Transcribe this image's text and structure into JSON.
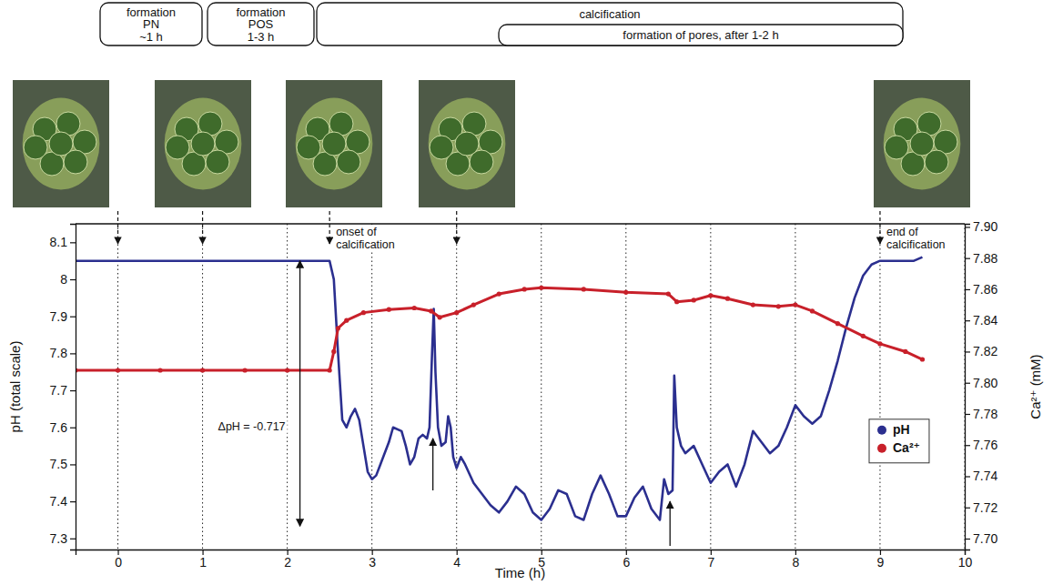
{
  "chart_data": {
    "type": "line",
    "x_label": "Time (h)",
    "y_label": "pH (total scale)",
    "y2_label": "Ca²⁺ (mM)",
    "xlim": [
      -0.5,
      10
    ],
    "xticks": [
      0,
      1,
      2,
      3,
      4,
      5,
      6,
      7,
      8,
      9,
      10
    ],
    "ylim": [
      7.27,
      8.15
    ],
    "yticks": [
      7.3,
      7.4,
      7.5,
      7.6,
      7.7,
      7.8,
      7.9,
      8.0,
      8.1
    ],
    "y2lim": [
      7.693,
      7.902
    ],
    "y2ticks": [
      {
        "value": 7.7,
        "label": "7.70"
      },
      7.72,
      7.74,
      7.76,
      7.78,
      {
        "value": 7.8,
        "label": "7.80"
      },
      7.82,
      7.84,
      7.86,
      7.88,
      {
        "value": 7.9,
        "label": "7.90"
      }
    ],
    "grid": "x",
    "legend": "right",
    "series": [
      {
        "name": "pH",
        "color": "#2b2f8f",
        "marker": "none",
        "line_style": "solid",
        "x": [
          -0.5,
          0,
          0.5,
          1,
          1.5,
          2,
          2.5,
          2.55,
          2.6,
          2.65,
          2.7,
          2.75,
          2.8,
          2.85,
          2.9,
          2.95,
          3.0,
          3.05,
          3.1,
          3.2,
          3.25,
          3.35,
          3.4,
          3.45,
          3.5,
          3.55,
          3.6,
          3.65,
          3.68,
          3.71,
          3.73,
          3.75,
          3.78,
          3.82,
          3.87,
          3.9,
          3.93,
          3.96,
          4.0,
          4.05,
          4.1,
          4.2,
          4.3,
          4.4,
          4.5,
          4.6,
          4.7,
          4.8,
          4.9,
          5.0,
          5.1,
          5.2,
          5.3,
          5.4,
          5.5,
          5.6,
          5.7,
          5.8,
          5.9,
          6.0,
          6.1,
          6.2,
          6.3,
          6.4,
          6.45,
          6.5,
          6.55,
          6.57,
          6.6,
          6.65,
          6.7,
          6.8,
          6.9,
          7.0,
          7.1,
          7.2,
          7.3,
          7.4,
          7.5,
          7.6,
          7.7,
          7.8,
          7.9,
          8.0,
          8.1,
          8.2,
          8.3,
          8.4,
          8.5,
          8.6,
          8.7,
          8.8,
          8.9,
          9.0,
          9.2,
          9.4,
          9.5
        ],
        "values": [
          8.05,
          8.05,
          8.05,
          8.05,
          8.05,
          8.05,
          8.05,
          8.0,
          7.8,
          7.62,
          7.6,
          7.63,
          7.65,
          7.62,
          7.55,
          7.48,
          7.46,
          7.47,
          7.5,
          7.56,
          7.6,
          7.59,
          7.55,
          7.5,
          7.52,
          7.57,
          7.58,
          7.57,
          7.6,
          7.8,
          7.92,
          7.75,
          7.6,
          7.55,
          7.56,
          7.63,
          7.6,
          7.52,
          7.49,
          7.52,
          7.5,
          7.45,
          7.42,
          7.39,
          7.37,
          7.4,
          7.44,
          7.42,
          7.37,
          7.35,
          7.38,
          7.43,
          7.42,
          7.36,
          7.35,
          7.42,
          7.47,
          7.42,
          7.36,
          7.36,
          7.41,
          7.44,
          7.38,
          7.35,
          7.46,
          7.42,
          7.43,
          7.74,
          7.6,
          7.55,
          7.53,
          7.55,
          7.5,
          7.45,
          7.48,
          7.5,
          7.44,
          7.5,
          7.59,
          7.56,
          7.53,
          7.55,
          7.6,
          7.66,
          7.63,
          7.61,
          7.63,
          7.7,
          7.78,
          7.87,
          7.95,
          8.01,
          8.04,
          8.05,
          8.05,
          8.05,
          8.06
        ]
      },
      {
        "name": "Ca²⁺",
        "color": "#c8202a",
        "axis": "y2",
        "marker": "circle",
        "line_style": "solid",
        "x": [
          -0.5,
          0,
          0.5,
          1,
          1.5,
          2,
          2.5,
          2.55,
          2.6,
          2.7,
          2.9,
          3.2,
          3.5,
          3.7,
          3.8,
          4.0,
          4.2,
          4.5,
          4.8,
          5.0,
          5.5,
          6.0,
          6.5,
          6.6,
          6.8,
          7.0,
          7.2,
          7.5,
          7.8,
          8.0,
          8.2,
          8.5,
          8.8,
          9.0,
          9.3,
          9.5
        ],
        "values": [
          7.808,
          7.808,
          7.808,
          7.808,
          7.808,
          7.808,
          7.808,
          7.82,
          7.835,
          7.84,
          7.845,
          7.847,
          7.848,
          7.846,
          7.842,
          7.845,
          7.85,
          7.857,
          7.86,
          7.861,
          7.86,
          7.858,
          7.857,
          7.852,
          7.853,
          7.856,
          7.854,
          7.85,
          7.849,
          7.85,
          7.846,
          7.838,
          7.83,
          7.825,
          7.82,
          7.815
        ]
      }
    ],
    "phases": [
      {
        "lines": [
          "formation",
          "PN",
          "~1 h"
        ]
      },
      {
        "lines": [
          "formation",
          "POS",
          "1-3 h"
        ]
      },
      {
        "lines": [
          "calcification"
        ]
      },
      {
        "lines": [
          "formation of pores, after 1-2 h"
        ]
      }
    ],
    "photo_times": [
      0,
      1,
      2.5,
      4,
      9
    ],
    "annotations": [
      {
        "lines": [
          "onset of",
          "calcification"
        ],
        "x": 2.5
      },
      {
        "lines": [
          "end of",
          "calcification"
        ],
        "x": 9
      }
    ],
    "delta_ph": {
      "text": "ΔpH = -0.717",
      "x": 2.15,
      "from": 8.05,
      "to": 7.333
    },
    "arrows": [
      {
        "x": 3.72,
        "from": 7.43,
        "to": 7.57
      },
      {
        "x": 6.52,
        "from": 7.28,
        "to": 7.4
      }
    ]
  }
}
